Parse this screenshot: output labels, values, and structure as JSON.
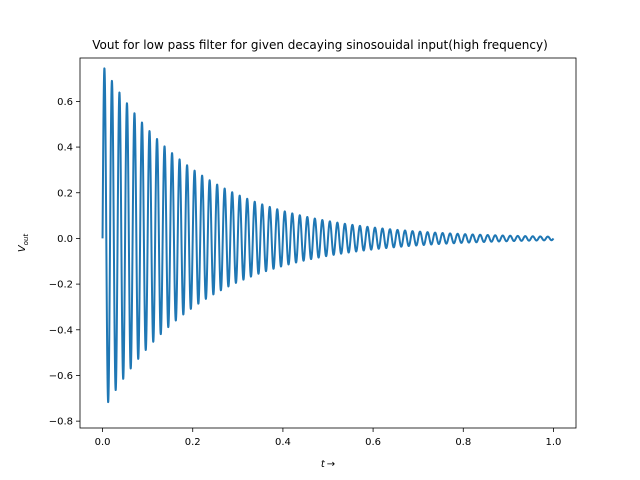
{
  "chart_data": {
    "type": "line",
    "title": "Vout for low pass filter for given decaying sinosouidal input(high frequency)",
    "xlabel_main": "t",
    "xlabel_arrow": "→",
    "ylabel_main": "V",
    "ylabel_sub": "out",
    "xlim": [
      -0.05,
      1.05
    ],
    "ylim": [
      -0.83,
      0.79
    ],
    "x_ticks": [
      0.0,
      0.2,
      0.4,
      0.6,
      0.8,
      1.0
    ],
    "x_tick_labels": [
      "0.0",
      "0.2",
      "0.4",
      "0.6",
      "0.8",
      "1.0"
    ],
    "y_ticks": [
      -0.8,
      -0.6,
      -0.4,
      -0.2,
      0.0,
      0.2,
      0.4,
      0.6
    ],
    "y_tick_labels": [
      "−0.8",
      "−0.6",
      "−0.4",
      "−0.2",
      "0.0",
      "0.2",
      "0.4",
      "0.6"
    ],
    "grid": false,
    "series": [
      {
        "color": "#1f77b4",
        "function": "decaying sinusoid",
        "x_start": 0.0,
        "x_end": 1.0,
        "amplitude_start": 0.76,
        "decay_rate": 4.6,
        "cycles": 60
      }
    ]
  },
  "colors": {
    "line": "#1f77b4",
    "axes": "#000000",
    "background": "#ffffff"
  }
}
